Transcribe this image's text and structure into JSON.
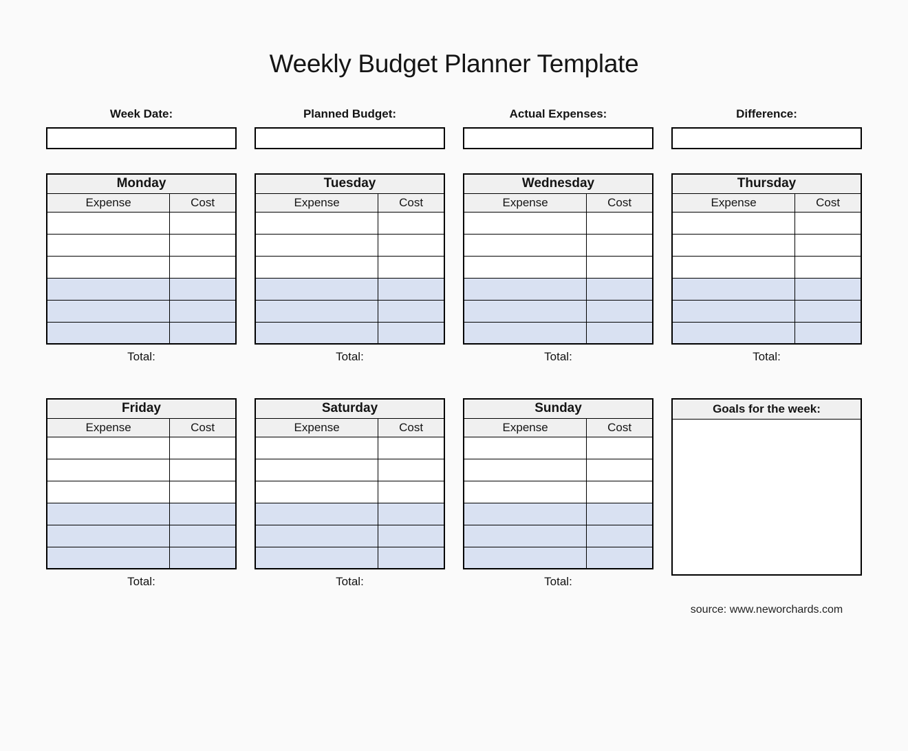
{
  "page": {
    "title": "Weekly Budget Planner Template",
    "source": "source: www.neworchards.com"
  },
  "fields": [
    {
      "label": "Week Date:",
      "value": ""
    },
    {
      "label": "Planned Budget:",
      "value": ""
    },
    {
      "label": "Actual Expenses:",
      "value": ""
    },
    {
      "label": "Difference:",
      "value": ""
    }
  ],
  "table_labels": {
    "expense": "Expense",
    "cost": "Cost",
    "total": "Total:"
  },
  "days": [
    {
      "name": "Monday"
    },
    {
      "name": "Tuesday"
    },
    {
      "name": "Wednesday"
    },
    {
      "name": "Thursday"
    },
    {
      "name": "Friday"
    },
    {
      "name": "Saturday"
    },
    {
      "name": "Sunday"
    }
  ],
  "goals": {
    "title": "Goals for the week:"
  },
  "colors": {
    "page_bg": "#fafafa",
    "header_bg": "#f0f0f0",
    "row_shade": "#d9e1f2",
    "border": "#000000"
  }
}
